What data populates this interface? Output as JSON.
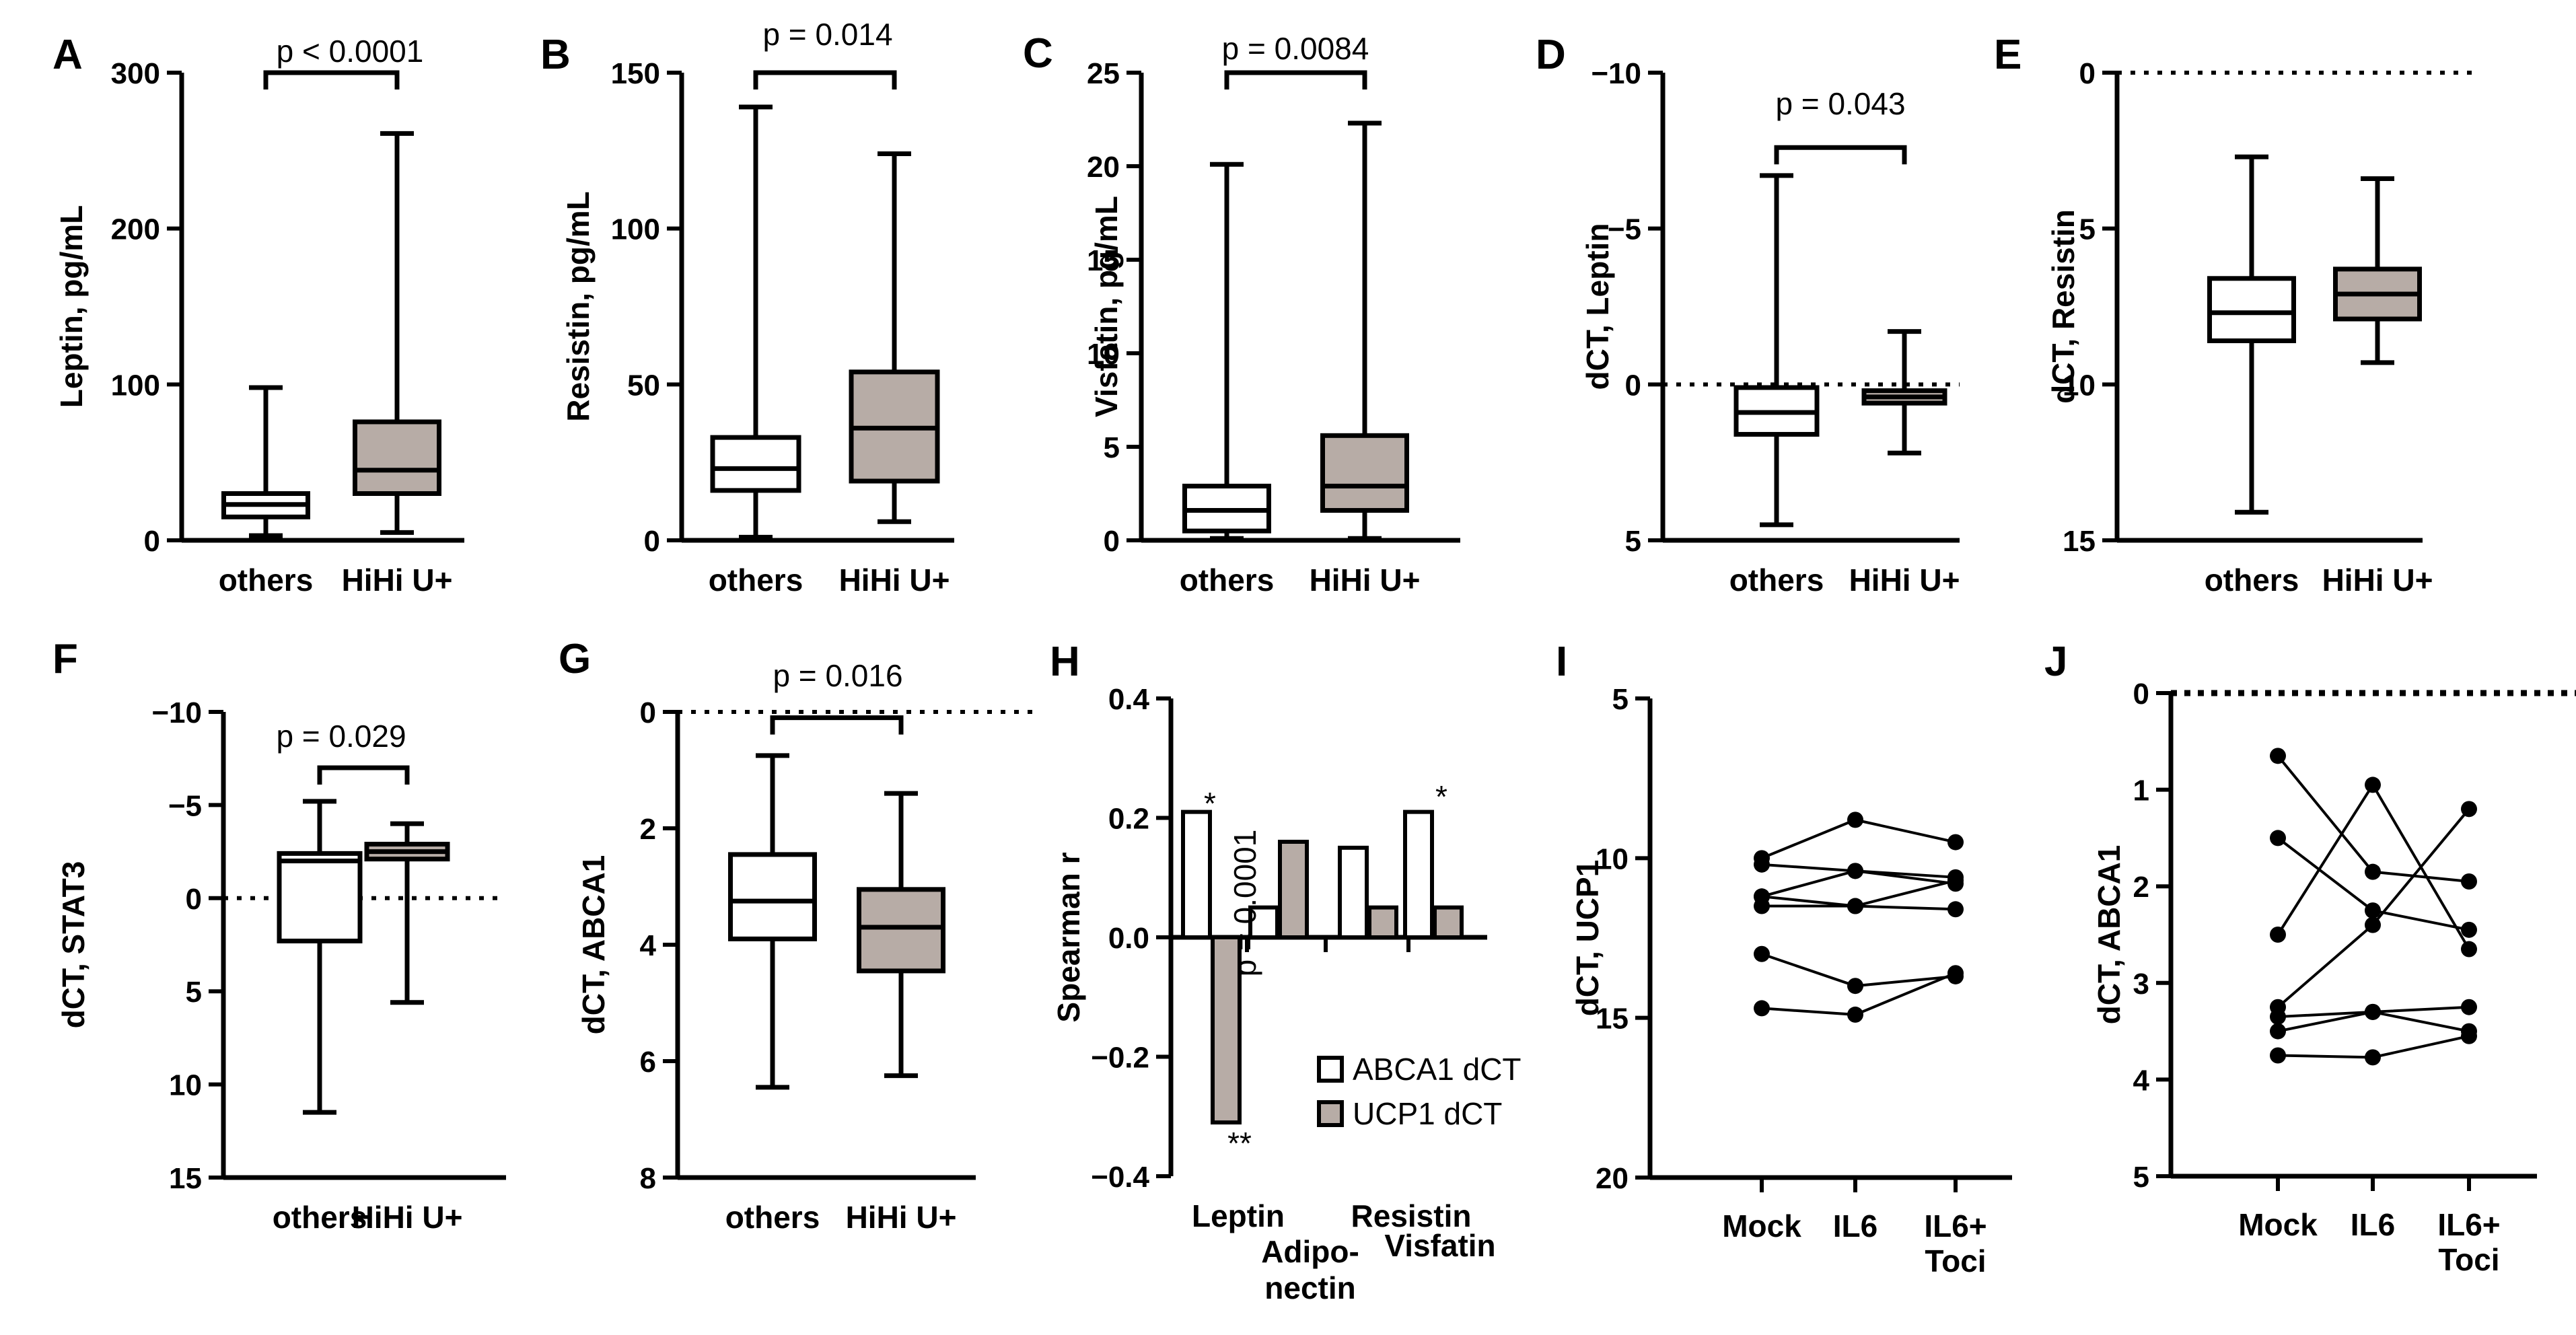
{
  "figure": {
    "colors": {
      "box_white": "#ffffff",
      "box_gray": "#b7aca6",
      "ink": "#000000"
    }
  },
  "chart_data": [
    {
      "id": "A",
      "type": "box",
      "panel_label": "A",
      "ylabel": "Leptin, pg/mL",
      "ylim": [
        0,
        300
      ],
      "yticks": [
        0,
        100,
        200,
        300
      ],
      "inverted": false,
      "categories": [
        "others",
        "HiHi U+"
      ],
      "boxes": [
        {
          "group": "others",
          "min": 3,
          "q1": 15,
          "median": 23,
          "q3": 30,
          "max": 98
        },
        {
          "group": "HiHi U+",
          "min": 5,
          "q1": 30,
          "median": 45,
          "q3": 76,
          "max": 261
        }
      ],
      "annotation": {
        "text": "p < 0.0001",
        "p_prefix": "p",
        "p_rest": " < 0.0001",
        "y": 300
      },
      "zero_line": false
    },
    {
      "id": "B",
      "type": "box",
      "panel_label": "B",
      "ylabel": "Resistin, pg/mL",
      "ylim": [
        0,
        150
      ],
      "yticks": [
        0,
        50,
        100,
        150
      ],
      "inverted": false,
      "categories": [
        "others",
        "HiHi U+"
      ],
      "boxes": [
        {
          "group": "others",
          "min": 1,
          "q1": 16,
          "median": 23,
          "q3": 33,
          "max": 139
        },
        {
          "group": "HiHi U+",
          "min": 6,
          "q1": 19,
          "median": 36,
          "q3": 54,
          "max": 124
        }
      ],
      "annotation": {
        "text": "p = 0.014",
        "p_prefix": "p",
        "p_rest": " = 0.014",
        "y": 150
      },
      "zero_line": false
    },
    {
      "id": "C",
      "type": "box",
      "panel_label": "C",
      "ylabel": "Visfatin, pg/mL",
      "ylim": [
        0,
        25
      ],
      "yticks": [
        0,
        5,
        10,
        15,
        20,
        25
      ],
      "inverted": false,
      "categories": [
        "others",
        "HiHi U+"
      ],
      "boxes": [
        {
          "group": "others",
          "min": 0.1,
          "q1": 0.5,
          "median": 1.6,
          "q3": 2.9,
          "max": 20.1
        },
        {
          "group": "HiHi U+",
          "min": 0.1,
          "q1": 1.6,
          "median": 2.9,
          "q3": 5.6,
          "max": 22.3
        }
      ],
      "annotation": {
        "text": "p = 0.0084",
        "p_prefix": "p",
        "p_rest": " = 0.0084",
        "y": 25
      },
      "zero_line": false
    },
    {
      "id": "D",
      "type": "box",
      "panel_label": "D",
      "ylabel": "dCT, Leptin",
      "ylim": [
        -10,
        5
      ],
      "yticks": [
        -10,
        -5,
        0,
        5
      ],
      "ytick_labels": [
        "−10",
        "−5",
        "0",
        "5"
      ],
      "inverted": true,
      "categories": [
        "others",
        "HiHi U+"
      ],
      "boxes": [
        {
          "group": "others",
          "min": -6.7,
          "q1": 0.1,
          "median": 0.9,
          "q3": 1.6,
          "max": 4.5
        },
        {
          "group": "HiHi U+",
          "min": -1.7,
          "q1": 0.2,
          "median": 0.4,
          "q3": 0.6,
          "max": 2.2
        }
      ],
      "annotation": {
        "text": "p = 0.043",
        "p_prefix": "p",
        "p_rest": " = 0.043",
        "y": -7.6
      },
      "zero_line": true
    },
    {
      "id": "E",
      "type": "box",
      "panel_label": "E",
      "ylabel": "dCT, Resistin",
      "ylim": [
        0,
        15
      ],
      "yticks": [
        0,
        5,
        10,
        15
      ],
      "inverted": true,
      "categories": [
        "others",
        "HiHi U+"
      ],
      "boxes": [
        {
          "group": "others",
          "min": 2.7,
          "q1": 6.6,
          "median": 7.7,
          "q3": 8.6,
          "max": 14.1
        },
        {
          "group": "HiHi U+",
          "min": 3.4,
          "q1": 6.3,
          "median": 7.1,
          "q3": 7.9,
          "max": 9.3
        }
      ],
      "annotation": null,
      "zero_line": true
    },
    {
      "id": "F",
      "type": "box",
      "panel_label": "F",
      "ylabel": "dCT, STAT3",
      "ylim": [
        -10,
        15
      ],
      "yticks": [
        -10,
        -5,
        0,
        5,
        10,
        15
      ],
      "ytick_labels": [
        "−10",
        "−5",
        "0",
        "5",
        "10",
        "15"
      ],
      "inverted": true,
      "categories": [
        "others",
        "HiHi U+"
      ],
      "boxes": [
        {
          "group": "others",
          "min": -5.2,
          "q1": -2.4,
          "median": -2.0,
          "q3": 2.3,
          "max": 11.5
        },
        {
          "group": "HiHi U+",
          "min": -4.0,
          "q1": -2.9,
          "median": -2.5,
          "q3": -2.1,
          "max": 5.6
        }
      ],
      "annotation": {
        "text": "p = 0.029",
        "p_prefix": "p",
        "p_rest": " = 0.029",
        "y": -7.0
      },
      "zero_line": true
    },
    {
      "id": "G",
      "type": "box",
      "panel_label": "G",
      "ylabel": "dCT, ABCA1",
      "ylim": [
        0,
        8
      ],
      "yticks": [
        0,
        2,
        4,
        6,
        8
      ],
      "inverted": true,
      "categories": [
        "others",
        "HiHi U+"
      ],
      "boxes": [
        {
          "group": "others",
          "min": 0.75,
          "q1": 2.45,
          "median": 3.25,
          "q3": 3.9,
          "max": 6.45
        },
        {
          "group": "HiHi U+",
          "min": 1.4,
          "q1": 3.05,
          "median": 3.7,
          "q3": 4.45,
          "max": 6.25
        }
      ],
      "annotation": {
        "text": "p = 0.016",
        "p_prefix": "p",
        "p_rest": " = 0.016",
        "y": 0.1
      },
      "zero_line": true
    },
    {
      "id": "H",
      "type": "bar",
      "panel_label": "H",
      "ylabel": "Spearman r",
      "ylim": [
        -0.4,
        0.4
      ],
      "yticks": [
        -0.4,
        -0.2,
        0.0,
        0.2,
        0.4
      ],
      "ytick_labels": [
        "−0.4",
        "−0.2",
        "0.0",
        "0.2",
        "0.4"
      ],
      "categories": [
        "Leptin",
        "Adipo-\nnectin",
        "Resistin",
        "Visfatin"
      ],
      "category_lines": [
        [
          "Leptin"
        ],
        [
          "Adipo-",
          "nectin"
        ],
        [
          "Resistin"
        ],
        [
          "Visfatin"
        ]
      ],
      "series": [
        {
          "name": "ABCA1 dCT",
          "values": [
            0.21,
            0.05,
            0.15,
            0.21
          ]
        },
        {
          "name": "UCP1 dCT",
          "values": [
            -0.31,
            0.16,
            0.05,
            0.05
          ]
        }
      ],
      "annotations": [
        "*",
        "**",
        "p = 0.0001",
        "*"
      ],
      "annotation_labels": {
        "leptin_abca1": "*",
        "leptin_ucp1": "**",
        "leptin_p": "p = 0.0001",
        "visfatin_abca1": "*"
      },
      "legend": {
        "position": "lower-right",
        "entries": [
          "ABCA1 dCT",
          "UCP1 dCT"
        ]
      }
    },
    {
      "id": "I",
      "type": "line",
      "panel_label": "I",
      "ylabel": "dCT, UCP1",
      "ylim": [
        5,
        20
      ],
      "yticks": [
        5,
        10,
        15,
        20
      ],
      "inverted": true,
      "categories": [
        "Mock",
        "IL6",
        "IL6+\nToci"
      ],
      "category_lines": [
        [
          "Mock"
        ],
        [
          "IL6"
        ],
        [
          "IL6+",
          "Toci"
        ]
      ],
      "series": [
        {
          "name": "1",
          "values": [
            10.0,
            8.8,
            9.5
          ]
        },
        {
          "name": "2",
          "values": [
            10.2,
            10.4,
            10.8
          ]
        },
        {
          "name": "3",
          "values": [
            11.2,
            10.4,
            10.6
          ]
        },
        {
          "name": "4",
          "values": [
            11.5,
            11.5,
            10.7
          ]
        },
        {
          "name": "5",
          "values": [
            11.2,
            11.5,
            11.6
          ]
        },
        {
          "name": "6",
          "values": [
            13.0,
            14.0,
            13.7
          ]
        },
        {
          "name": "7",
          "values": [
            14.7,
            14.9,
            13.6
          ]
        }
      ],
      "zero_line": false
    },
    {
      "id": "J",
      "type": "line",
      "panel_label": "J",
      "ylabel": "dCT, ABCA1",
      "ylim": [
        0,
        5
      ],
      "yticks": [
        0,
        1,
        2,
        3,
        4,
        5
      ],
      "inverted": true,
      "categories": [
        "Mock",
        "IL6",
        "IL6+\nToci"
      ],
      "category_lines": [
        [
          "Mock"
        ],
        [
          "IL6"
        ],
        [
          "IL6+",
          "Toci"
        ]
      ],
      "series": [
        {
          "name": "1",
          "values": [
            0.65,
            1.85,
            1.95
          ]
        },
        {
          "name": "2",
          "values": [
            1.5,
            2.25,
            2.45
          ]
        },
        {
          "name": "3",
          "values": [
            2.5,
            0.95,
            2.65
          ]
        },
        {
          "name": "4",
          "values": [
            3.25,
            2.4,
            1.2
          ]
        },
        {
          "name": "5",
          "values": [
            3.35,
            3.3,
            3.25
          ]
        },
        {
          "name": "6",
          "values": [
            3.5,
            3.3,
            3.5
          ]
        },
        {
          "name": "7",
          "values": [
            3.75,
            3.77,
            3.55
          ]
        }
      ],
      "zero_line": true
    }
  ]
}
